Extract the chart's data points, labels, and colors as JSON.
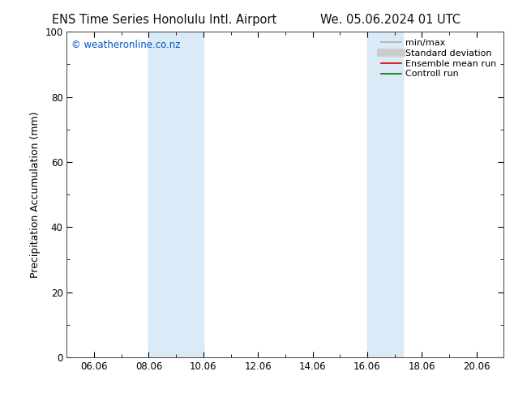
{
  "title_left": "ENS Time Series Honolulu Intl. Airport",
  "title_right": "We. 05.06.2024 01 UTC",
  "ylabel": "Precipitation Accumulation (mm)",
  "xlabel": "",
  "ylim": [
    0,
    100
  ],
  "xlim": [
    5.0,
    21.0
  ],
  "xtick_positions": [
    6.0,
    8.0,
    10.0,
    12.0,
    14.0,
    16.0,
    18.0,
    20.0
  ],
  "xtick_labels": [
    "06.06",
    "08.06",
    "10.06",
    "12.06",
    "14.06",
    "16.06",
    "18.06",
    "20.06"
  ],
  "ytick_positions": [
    0,
    20,
    40,
    60,
    80,
    100
  ],
  "shade_bands": [
    {
      "x_start": 8.0,
      "x_end": 10.0,
      "color": "#daeaf7"
    },
    {
      "x_start": 16.0,
      "x_end": 17.3,
      "color": "#daeaf7"
    }
  ],
  "watermark_text": "© weatheronline.co.nz",
  "watermark_color": "#0055cc",
  "legend_entries": [
    {
      "label": "min/max",
      "color": "#aaaaaa",
      "linestyle": "-",
      "linewidth": 1.2
    },
    {
      "label": "Standard deviation",
      "color": "#cccccc",
      "linestyle": "-",
      "linewidth": 7
    },
    {
      "label": "Ensemble mean run",
      "color": "#dd0000",
      "linestyle": "-",
      "linewidth": 1.2
    },
    {
      "label": "Controll run",
      "color": "#007700",
      "linestyle": "-",
      "linewidth": 1.2
    }
  ],
  "background_color": "#ffffff",
  "plot_background": "#ffffff",
  "title_fontsize": 10.5,
  "tick_label_fontsize": 8.5,
  "ylabel_fontsize": 9,
  "legend_fontsize": 8,
  "watermark_fontsize": 8.5
}
